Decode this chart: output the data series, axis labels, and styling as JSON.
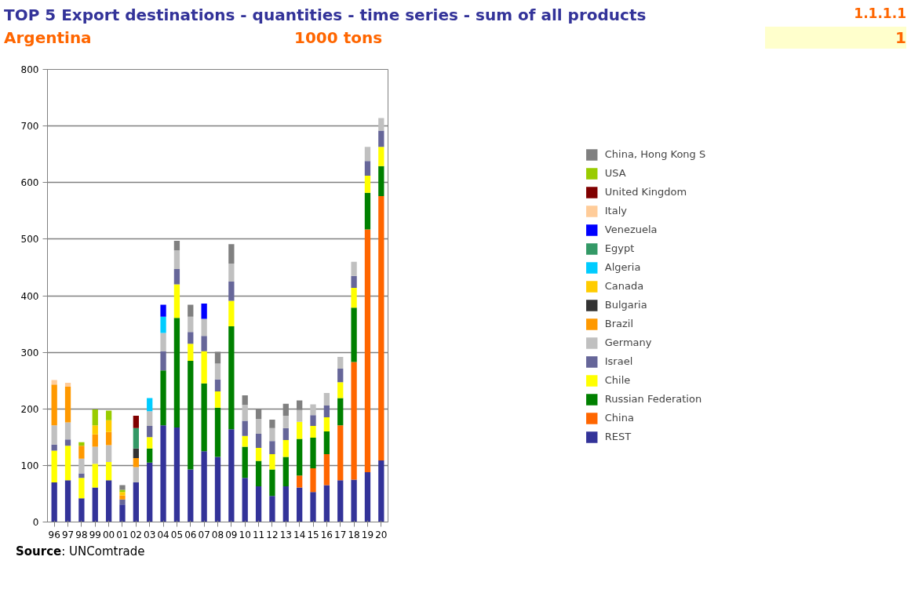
{
  "chart_data": {
    "type": "bar",
    "stacked": true,
    "title": "TOP 5 Export destinations - quantities - time series - sum of all products",
    "subtitle": "Argentina",
    "ylabel": "1000 tons",
    "annotations": [
      "1.1.1.1",
      "1",
      "Source: UNComtrade"
    ],
    "categories": [
      "96",
      "97",
      "98",
      "99",
      "00",
      "01",
      "02",
      "03",
      "04",
      "05",
      "06",
      "07",
      "08",
      "09",
      "10",
      "11",
      "12",
      "13",
      "14",
      "15",
      "16",
      "17",
      "18",
      "19",
      "20"
    ],
    "series": [
      {
        "name": "REST",
        "color": "#333399",
        "values": [
          70,
          74,
          42,
          61,
          74,
          31,
          70,
          105,
          171,
          167,
          93,
          125,
          115,
          164,
          78,
          63,
          46,
          63,
          61,
          53,
          65,
          74,
          75,
          88,
          109
        ]
      },
      {
        "name": "China",
        "color": "#ff6600",
        "values": [
          null,
          null,
          null,
          null,
          null,
          null,
          null,
          null,
          null,
          null,
          null,
          null,
          null,
          null,
          null,
          null,
          null,
          null,
          21,
          42,
          55,
          97,
          208,
          429,
          467
        ]
      },
      {
        "name": "Russian Federation",
        "color": "#008000",
        "values": [
          null,
          null,
          null,
          null,
          null,
          null,
          null,
          25,
          97,
          194,
          192,
          120,
          87,
          182,
          55,
          45,
          47,
          52,
          65,
          54,
          40,
          48,
          96,
          65,
          53
        ]
      },
      {
        "name": "Chile",
        "color": "#ffff00",
        "values": [
          56,
          61,
          36,
          42,
          32,
          null,
          null,
          20,
          null,
          59,
          30,
          57,
          29,
          45,
          19,
          23,
          27,
          30,
          30,
          21,
          25,
          28,
          35,
          30,
          34
        ]
      },
      {
        "name": "Israel",
        "color": "#666699",
        "values": [
          11,
          11,
          8,
          null,
          null,
          9,
          null,
          20,
          34,
          27,
          21,
          27,
          21,
          34,
          27,
          25,
          23,
          21,
          null,
          19,
          21,
          24,
          21,
          26,
          29
        ]
      },
      {
        "name": "Germany",
        "color": "#c0c0c0",
        "values": [
          34,
          30,
          26,
          30,
          30,
          null,
          27,
          26,
          32,
          33,
          27,
          30,
          28,
          32,
          28,
          26,
          23,
          22,
          21,
          19,
          22,
          21,
          25,
          25,
          22
        ]
      },
      {
        "name": "Brazil",
        "color": "#ff9900",
        "values": [
          72,
          63,
          23,
          22,
          23,
          7,
          16,
          null,
          null,
          null,
          null,
          null,
          null,
          null,
          null,
          null,
          null,
          null,
          null,
          null,
          null,
          null,
          null,
          null,
          null
        ]
      },
      {
        "name": "Bulgaria",
        "color": "#333333",
        "values": [
          null,
          null,
          null,
          null,
          null,
          null,
          17,
          null,
          null,
          null,
          null,
          null,
          null,
          null,
          null,
          null,
          null,
          null,
          null,
          null,
          null,
          null,
          null,
          null,
          null
        ]
      },
      {
        "name": "Canada",
        "color": "#ffcc00",
        "values": [
          null,
          null,
          null,
          16,
          21,
          6,
          null,
          null,
          null,
          null,
          null,
          null,
          null,
          null,
          null,
          null,
          null,
          null,
          null,
          null,
          null,
          null,
          null,
          null,
          null
        ]
      },
      {
        "name": "Algeria",
        "color": "#00ccff",
        "values": [
          null,
          null,
          null,
          null,
          null,
          null,
          null,
          23,
          29,
          null,
          null,
          null,
          null,
          null,
          null,
          null,
          null,
          null,
          null,
          null,
          null,
          null,
          null,
          null,
          null
        ]
      },
      {
        "name": "Egypt",
        "color": "#339966",
        "values": [
          null,
          null,
          null,
          null,
          null,
          null,
          36,
          null,
          null,
          null,
          null,
          null,
          null,
          null,
          null,
          null,
          null,
          null,
          null,
          null,
          null,
          null,
          null,
          null,
          null
        ]
      },
      {
        "name": "Venezuela",
        "color": "#0000ff",
        "values": [
          null,
          null,
          null,
          null,
          null,
          null,
          null,
          null,
          21,
          null,
          null,
          27,
          null,
          null,
          null,
          null,
          null,
          null,
          null,
          null,
          null,
          null,
          null,
          null,
          null
        ]
      },
      {
        "name": "Italy",
        "color": "#ffcc99",
        "values": [
          8,
          7,
          null,
          null,
          null,
          null,
          null,
          null,
          null,
          null,
          null,
          null,
          null,
          null,
          null,
          null,
          null,
          null,
          null,
          null,
          null,
          null,
          null,
          null,
          null
        ]
      },
      {
        "name": "United Kingdom",
        "color": "#800000",
        "values": [
          null,
          null,
          null,
          null,
          null,
          null,
          22,
          null,
          null,
          null,
          null,
          null,
          null,
          null,
          null,
          null,
          null,
          null,
          null,
          null,
          null,
          null,
          null,
          null,
          null
        ]
      },
      {
        "name": "USA",
        "color": "#99cc00",
        "values": [
          null,
          null,
          6,
          28,
          17,
          4,
          null,
          null,
          null,
          null,
          null,
          null,
          null,
          null,
          null,
          null,
          null,
          null,
          null,
          null,
          null,
          null,
          null,
          null,
          null
        ]
      },
      {
        "name": "China, Hong Kong S",
        "color": "#808080",
        "values": [
          null,
          null,
          null,
          null,
          null,
          8,
          null,
          null,
          null,
          17,
          21,
          null,
          21,
          34,
          17,
          18,
          15,
          21,
          17,
          null,
          null,
          null,
          null,
          null,
          null
        ]
      }
    ],
    "ylim": [
      0,
      800
    ],
    "yticks": [
      0,
      100,
      200,
      300,
      400,
      500,
      600,
      700,
      800
    ],
    "grid": "y",
    "legend": "right"
  }
}
